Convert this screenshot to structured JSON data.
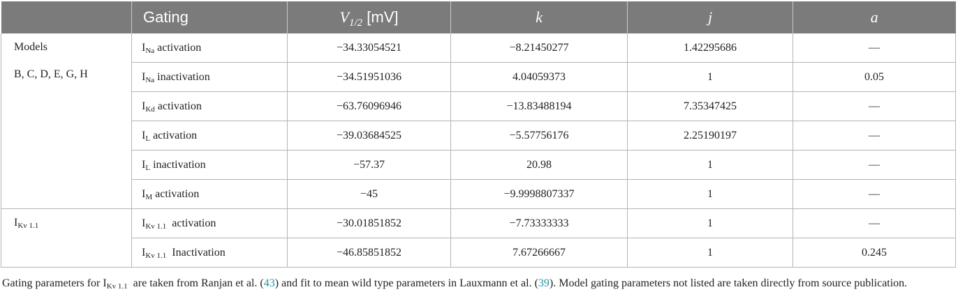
{
  "header": {
    "col0": "",
    "gating": "Gating",
    "v_half_var": "V",
    "v_half_sub": "1/2",
    "v_half_unit": " [mV]",
    "k": "k",
    "j": "j",
    "a": "a"
  },
  "groups": [
    {
      "line1": "Models",
      "line2": "B, C, D, E, G, H"
    },
    {
      "base": "I",
      "sub": "Kv 1.1"
    }
  ],
  "rows": [
    {
      "base": "I",
      "sub": "Na",
      "gate": " activation",
      "v": "−34.33054521",
      "k": "−8.21450277",
      "j": "1.42295686",
      "a": "—"
    },
    {
      "base": "I",
      "sub": "Na",
      "gate": " inactivation",
      "v": "−34.51951036",
      "k": "4.04059373",
      "j": "1",
      "a": "0.05"
    },
    {
      "base": "I",
      "sub": "Kd",
      "gate": " activation",
      "v": "−63.76096946",
      "k": "−13.83488194",
      "j": "7.35347425",
      "a": "—"
    },
    {
      "base": "I",
      "sub": "L",
      "gate": " activation",
      "v": "−39.03684525",
      "k": "−5.57756176",
      "j": "2.25190197",
      "a": "—"
    },
    {
      "base": "I",
      "sub": "L",
      "gate": " inactivation",
      "v": "−57.37",
      "k": "20.98",
      "j": "1",
      "a": "—"
    },
    {
      "base": "I",
      "sub": "M",
      "gate": " activation",
      "v": "−45",
      "k": "−9.9998807337",
      "j": "1",
      "a": "—"
    },
    {
      "base": "I",
      "sub": "Kv 1.1",
      "gate": "  activation",
      "v": "−30.01851852",
      "k": "−7.73333333",
      "j": "1",
      "a": "—"
    },
    {
      "base": "I",
      "sub": "Kv 1.1",
      "gate": "  Inactivation",
      "v": "−46.85851852",
      "k": "7.67266667",
      "j": "1",
      "a": "0.245"
    }
  ],
  "caption": {
    "part1": "Gating parameters for I",
    "sub": "Kv 1.1",
    "part2": "  are taken from Ranjan et al. (",
    "cite1": "43",
    "part3": ") and fit to mean wild type parameters in Lauxmann et al. (",
    "cite2": "39",
    "part4": "). Model gating parameters not listed are taken directly from source publication."
  },
  "colors": {
    "header_bg": "#7b7b7b",
    "header_text": "#ffffff",
    "grid": "#b5b5b5",
    "citation_link": "#1a9aa8"
  }
}
